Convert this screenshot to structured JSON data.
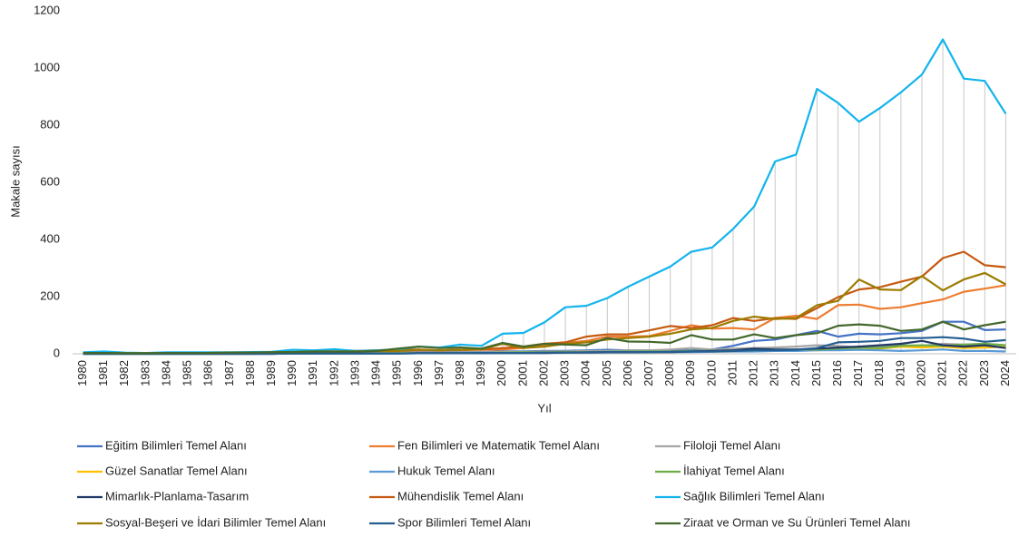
{
  "chart_data": {
    "type": "line",
    "y_label": "Makale sayısı",
    "x_label": "Yıl",
    "categories": [
      "1980",
      "1981",
      "1982",
      "1983",
      "1984",
      "1985",
      "1986",
      "1987",
      "1988",
      "1989",
      "1990",
      "1991",
      "1992",
      "1993",
      "1994",
      "1995",
      "1996",
      "1997",
      "1998",
      "1999",
      "2000",
      "2001",
      "2002",
      "2003",
      "2004",
      "2005",
      "2006",
      "2007",
      "2008",
      "2009",
      "2010",
      "2011",
      "2012",
      "2013",
      "2014",
      "2015",
      "2016",
      "2017",
      "2018",
      "2019",
      "2020",
      "2021",
      "2022",
      "2023",
      "2024"
    ],
    "ylim": [
      0,
      1200
    ],
    "yticks": [
      0,
      200,
      400,
      600,
      800,
      1000,
      1200
    ],
    "grid": false,
    "high_low_lines": true,
    "legend": "bottom",
    "series": [
      {
        "name": "Eğitim Bilimleri Temel Alanı",
        "color": "#4472c4",
        "values": [
          2,
          2,
          1,
          1,
          2,
          2,
          2,
          2,
          2,
          3,
          3,
          4,
          4,
          4,
          5,
          5,
          6,
          6,
          6,
          6,
          8,
          8,
          10,
          10,
          12,
          14,
          12,
          12,
          12,
          12,
          15,
          28,
          45,
          50,
          65,
          80,
          60,
          70,
          68,
          72,
          80,
          112,
          112,
          83,
          85
        ]
      },
      {
        "name": "Fen Bilimleri ve Matematik Temel Alanı",
        "color": "#ed7d31",
        "values": [
          1,
          1,
          1,
          1,
          1,
          2,
          2,
          2,
          3,
          3,
          4,
          5,
          6,
          6,
          8,
          10,
          12,
          12,
          13,
          14,
          15,
          20,
          30,
          38,
          45,
          60,
          60,
          62,
          80,
          100,
          88,
          90,
          85,
          125,
          133,
          122,
          170,
          172,
          157,
          163,
          177,
          190,
          217,
          228,
          240
        ]
      },
      {
        "name": "Filoloji Temel Alanı",
        "color": "#a5a5a5",
        "values": [
          0,
          0,
          0,
          0,
          0,
          0,
          1,
          1,
          1,
          1,
          2,
          2,
          2,
          2,
          3,
          3,
          4,
          4,
          5,
          5,
          6,
          6,
          8,
          8,
          10,
          10,
          12,
          12,
          15,
          20,
          15,
          18,
          20,
          22,
          25,
          30,
          28,
          22,
          25,
          30,
          28,
          35,
          32,
          35,
          30
        ]
      },
      {
        "name": "Güzel Sanatlar Temel Alanı",
        "color": "#ffc000",
        "values": [
          0,
          0,
          0,
          0,
          0,
          0,
          0,
          0,
          0,
          0,
          1,
          1,
          1,
          1,
          1,
          2,
          2,
          2,
          2,
          3,
          3,
          3,
          4,
          4,
          5,
          5,
          6,
          6,
          6,
          7,
          8,
          8,
          10,
          10,
          12,
          12,
          15,
          20,
          18,
          25,
          22,
          25,
          20,
          22,
          25
        ]
      },
      {
        "name": "Hukuk Temel Alanı",
        "color": "#5b9bd5",
        "values": [
          0,
          0,
          0,
          0,
          0,
          0,
          0,
          0,
          0,
          0,
          1,
          1,
          1,
          1,
          1,
          1,
          2,
          2,
          2,
          2,
          3,
          3,
          3,
          4,
          4,
          5,
          5,
          6,
          6,
          6,
          7,
          8,
          8,
          10,
          10,
          12,
          12,
          14,
          12,
          10,
          12,
          15,
          10,
          10,
          8
        ]
      },
      {
        "name": "İlahiyat Temel Alanı",
        "color": "#70ad47",
        "values": [
          0,
          0,
          0,
          0,
          0,
          0,
          0,
          0,
          0,
          1,
          1,
          1,
          1,
          1,
          2,
          2,
          2,
          3,
          3,
          3,
          4,
          5,
          5,
          6,
          6,
          7,
          8,
          8,
          8,
          10,
          10,
          12,
          12,
          14,
          15,
          15,
          18,
          22,
          20,
          28,
          30,
          28,
          32,
          35,
          30
        ]
      },
      {
        "name": "Mimarlık-Planlama-Tasarım",
        "color": "#203864",
        "values": [
          0,
          0,
          0,
          0,
          0,
          0,
          0,
          0,
          0,
          0,
          1,
          1,
          1,
          1,
          1,
          1,
          2,
          2,
          2,
          2,
          3,
          3,
          3,
          4,
          4,
          5,
          5,
          6,
          6,
          8,
          10,
          12,
          18,
          15,
          15,
          18,
          22,
          25,
          30,
          35,
          45,
          30,
          25,
          30,
          20
        ]
      },
      {
        "name": "Mühendislik Temel Alanı",
        "color": "#c55a11",
        "values": [
          2,
          2,
          2,
          1,
          2,
          3,
          3,
          3,
          4,
          4,
          5,
          8,
          8,
          10,
          12,
          15,
          15,
          12,
          14,
          15,
          20,
          25,
          35,
          40,
          60,
          68,
          68,
          82,
          97,
          90,
          100,
          125,
          115,
          125,
          122,
          160,
          198,
          225,
          233,
          252,
          270,
          335,
          357,
          310,
          303
        ]
      },
      {
        "name": "Sağlık Bilimleri Temel Alanı",
        "color": "#12b4ec",
        "values": [
          5,
          8,
          4,
          3,
          5,
          5,
          5,
          5,
          6,
          7,
          14,
          12,
          16,
          10,
          12,
          15,
          25,
          22,
          32,
          28,
          70,
          73,
          110,
          163,
          168,
          195,
          235,
          270,
          305,
          357,
          372,
          437,
          515,
          673,
          697,
          927,
          878,
          812,
          860,
          915,
          977,
          1100,
          963,
          955,
          840
        ]
      },
      {
        "name": "Sosyal-Beşeri ve İdari Bilimler Temel Alanı",
        "color": "#9c7c00",
        "values": [
          3,
          3,
          2,
          2,
          3,
          3,
          3,
          4,
          4,
          5,
          6,
          8,
          8,
          8,
          10,
          10,
          14,
          12,
          14,
          15,
          35,
          20,
          25,
          35,
          40,
          50,
          55,
          60,
          70,
          85,
          90,
          115,
          130,
          122,
          125,
          170,
          185,
          260,
          225,
          223,
          272,
          222,
          260,
          283,
          243
        ]
      },
      {
        "name": "Spor Bilimleri Temel Alanı",
        "color": "#255e91",
        "values": [
          0,
          0,
          0,
          0,
          0,
          0,
          0,
          0,
          0,
          0,
          1,
          1,
          1,
          1,
          1,
          1,
          2,
          2,
          2,
          3,
          3,
          3,
          4,
          4,
          5,
          6,
          6,
          6,
          7,
          8,
          8,
          10,
          12,
          12,
          14,
          20,
          40,
          42,
          45,
          55,
          55,
          58,
          53,
          42,
          48
        ]
      },
      {
        "name": "Ziraat ve Orman ve Su Ürünleri Temel Alanı",
        "color": "#43682b",
        "values": [
          3,
          3,
          2,
          2,
          3,
          3,
          3,
          4,
          4,
          5,
          6,
          8,
          8,
          8,
          10,
          18,
          25,
          20,
          22,
          18,
          38,
          25,
          35,
          32,
          30,
          55,
          43,
          42,
          38,
          65,
          50,
          50,
          68,
          55,
          65,
          72,
          98,
          103,
          98,
          80,
          85,
          112,
          85,
          100,
          112
        ]
      }
    ]
  }
}
